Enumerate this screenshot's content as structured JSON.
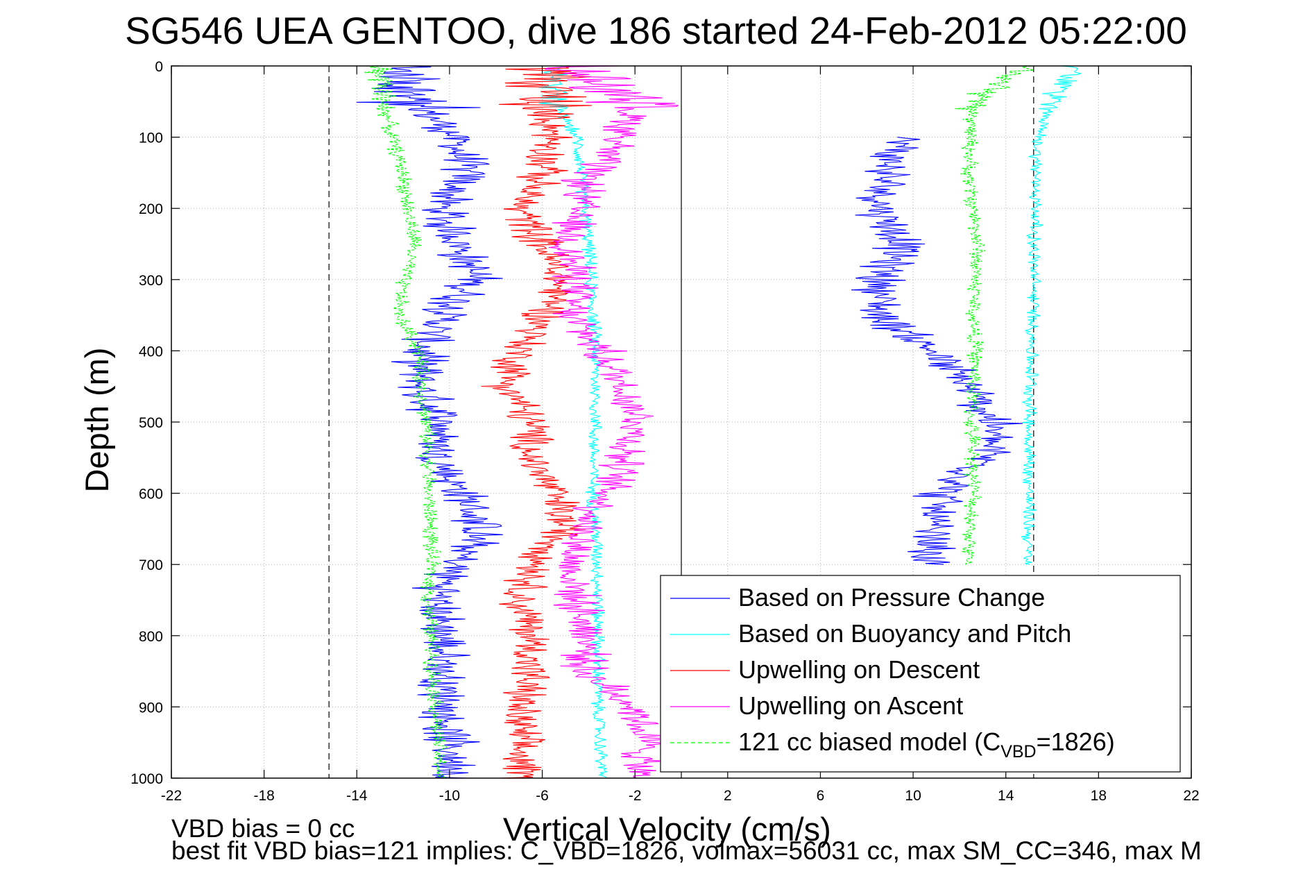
{
  "chart_data": {
    "type": "line",
    "title": "SG546 UEA GENTOO, dive 186 started 24-Feb-2012 05:22:00",
    "xlabel": "Vertical Velocity (cm/s)",
    "ylabel": "Depth (m)",
    "xlim": [
      -22,
      22
    ],
    "ylim": [
      0,
      1000
    ],
    "y_reversed": true,
    "grid": true,
    "legend_position": "bottom-right",
    "x_ticks": [
      "-22",
      "-18",
      "-14",
      "-10",
      "-6",
      "-2",
      "2",
      "6",
      "10",
      "14",
      "18",
      "22"
    ],
    "y_ticks": [
      "0",
      "100",
      "200",
      "300",
      "400",
      "500",
      "600",
      "700",
      "800",
      "900",
      "1000"
    ],
    "reference_lines": {
      "vertical_solid_at": 0,
      "vertical_dashed_at": [
        -15.2,
        15.2
      ]
    },
    "series": [
      {
        "name": "Based on Pressure Change",
        "color": "#0000ff",
        "descent": {
          "depth": [
            0,
            50,
            100,
            150,
            200,
            250,
            300,
            350,
            400,
            450,
            500,
            550,
            600,
            650,
            700,
            750,
            800,
            850,
            900,
            950,
            1000
          ],
          "velocity": [
            -12.5,
            -11.5,
            -9.8,
            -9.3,
            -10.4,
            -9.6,
            -8.9,
            -10.2,
            -11.2,
            -11.3,
            -10.3,
            -10.6,
            -9.5,
            -8.6,
            -9.8,
            -10.6,
            -10.3,
            -10.3,
            -10.2,
            -10.0,
            -9.6
          ]
        },
        "ascent": {
          "depth": [
            100,
            150,
            200,
            250,
            300,
            350,
            400,
            450,
            500,
            550,
            600,
            650,
            700
          ],
          "velocity": [
            9.5,
            8.8,
            8.6,
            9.5,
            8.6,
            8.6,
            10.8,
            12.3,
            13.5,
            13.2,
            11.3,
            10.6,
            10.8
          ]
        }
      },
      {
        "name": "Based on Buoyancy and Pitch",
        "color": "#00ffff",
        "descent": {
          "depth": [
            0,
            50,
            100,
            150,
            200,
            250,
            300,
            350,
            400,
            450,
            500,
            550,
            600,
            650,
            700,
            750,
            800,
            850,
            900,
            950,
            1000
          ],
          "velocity": [
            -5.5,
            -5.5,
            -4.5,
            -4.3,
            -4.2,
            -4.0,
            -3.9,
            -3.8,
            -3.7,
            -3.7,
            -3.7,
            -3.8,
            -3.8,
            -3.7,
            -3.6,
            -3.6,
            -3.6,
            -3.6,
            -3.6,
            -3.5,
            -3.4
          ]
        },
        "ascent": {
          "depth": [
            0,
            50,
            100,
            150,
            200,
            250,
            300,
            350,
            400,
            450,
            500,
            550,
            600,
            650,
            700
          ],
          "velocity": [
            17.0,
            16.0,
            15.4,
            15.3,
            15.3,
            15.2,
            15.2,
            15.2,
            15.1,
            15.1,
            15.0,
            15.0,
            15.0,
            15.0,
            14.9
          ]
        }
      },
      {
        "name": "Upwelling on Descent",
        "color": "#ff0000",
        "descent": {
          "depth": [
            0,
            50,
            100,
            150,
            200,
            250,
            300,
            350,
            400,
            450,
            500,
            550,
            600,
            650,
            700,
            750,
            800,
            850,
            900,
            950,
            1000
          ],
          "velocity": [
            -6.0,
            -5.8,
            -5.5,
            -6.0,
            -7.0,
            -6.0,
            -5.2,
            -5.8,
            -7.0,
            -7.5,
            -6.5,
            -6.5,
            -5.5,
            -5.0,
            -6.2,
            -7.0,
            -6.5,
            -6.5,
            -7.0,
            -7.0,
            -6.8
          ]
        }
      },
      {
        "name": "Upwelling on Ascent",
        "color": "#ff00ff",
        "ascent": {
          "depth": [
            0,
            50,
            100,
            150,
            200,
            250,
            300,
            350,
            400,
            450,
            500,
            550,
            600,
            650,
            700,
            750,
            800,
            850,
            900,
            950,
            1000
          ],
          "velocity": [
            -4.5,
            -2.0,
            -2.5,
            -4.0,
            -4.5,
            -5.0,
            -4.5,
            -4.8,
            -3.5,
            -2.5,
            -1.8,
            -2.5,
            -3.2,
            -4.2,
            -4.8,
            -4.5,
            -4.0,
            -4.2,
            -2.0,
            -1.5,
            -2.0
          ]
        }
      },
      {
        "name": "121 cc biased model (C",
        "name_subscript": "VBD",
        "name_suffix": "=1826)",
        "color": "#00ff00",
        "dashed": true,
        "descent": {
          "depth": [
            0,
            50,
            100,
            150,
            200,
            250,
            300,
            350,
            400,
            450,
            500,
            550,
            600,
            650,
            700,
            750,
            800,
            850,
            900,
            950,
            1000
          ],
          "velocity": [
            -13.0,
            -12.8,
            -12.5,
            -12.0,
            -11.8,
            -11.5,
            -12.0,
            -12.2,
            -11.3,
            -11.2,
            -11.0,
            -10.9,
            -10.9,
            -10.8,
            -10.8,
            -10.9,
            -10.8,
            -10.7,
            -10.6,
            -10.5,
            -10.4
          ]
        },
        "ascent": {
          "depth": [
            0,
            50,
            100,
            150,
            200,
            250,
            300,
            350,
            400,
            450,
            500,
            550,
            600,
            650,
            700
          ],
          "velocity": [
            15.0,
            12.5,
            12.5,
            12.4,
            12.6,
            12.8,
            12.7,
            12.6,
            12.7,
            12.6,
            12.5,
            12.6,
            12.6,
            12.5,
            12.4
          ]
        }
      }
    ],
    "footer_lines": [
      "VBD bias = 0 cc",
      "best fit VBD bias=121 implies: C_VBD=1826, volmax=56031 cc, max SM_CC=346, max M"
    ]
  }
}
